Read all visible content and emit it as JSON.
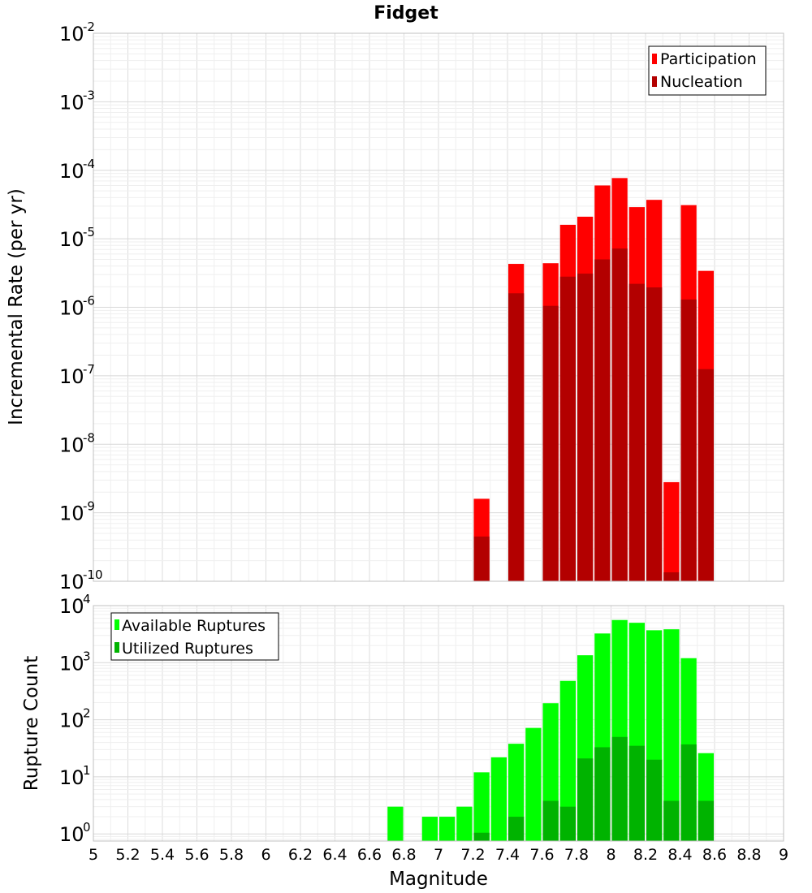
{
  "chart_data": [
    {
      "type": "bar",
      "title": "Fidget",
      "xlabel": "",
      "ylabel": "Incremental Rate (per yr)",
      "y_scale": "log",
      "ylim": [
        1e-10,
        0.01
      ],
      "xlim": [
        5,
        9
      ],
      "y_ticks": [
        {
          "base": "10",
          "exp": "-2"
        },
        {
          "base": "10",
          "exp": "-3"
        },
        {
          "base": "10",
          "exp": "-4"
        },
        {
          "base": "10",
          "exp": "-5"
        },
        {
          "base": "10",
          "exp": "-6"
        },
        {
          "base": "10",
          "exp": "-7"
        },
        {
          "base": "10",
          "exp": "-8"
        },
        {
          "base": "10",
          "exp": "-9"
        },
        {
          "base": "10",
          "exp": "-10"
        }
      ],
      "legend_position": "top-right",
      "x": [
        7.25,
        7.45,
        7.65,
        7.75,
        7.85,
        7.95,
        8.05,
        8.15,
        8.25,
        8.35,
        8.45,
        8.55
      ],
      "series": [
        {
          "name": "Participation",
          "color": "#ff0000",
          "values": [
            1.6e-09,
            4.3e-06,
            4.4e-06,
            1.6e-05,
            2.1e-05,
            6e-05,
            7.7e-05,
            2.9e-05,
            3.7e-05,
            2.8e-09,
            3.1e-05,
            3.4e-06
          ]
        },
        {
          "name": "Nucleation",
          "color": "#b30000",
          "values": [
            4.5e-10,
            1.6e-06,
            1.05e-06,
            2.8e-06,
            3.1e-06,
            5e-06,
            7.2e-06,
            2.2e-06,
            1.95e-06,
            1.35e-10,
            1.3e-06,
            1.25e-07
          ]
        }
      ]
    },
    {
      "type": "bar",
      "title": "",
      "xlabel": "Magnitude",
      "ylabel": "Rupture Count",
      "y_scale": "log",
      "ylim": [
        0.75,
        10000
      ],
      "xlim": [
        5,
        9
      ],
      "x_ticks": [
        "5",
        "5.2",
        "5.4",
        "5.6",
        "5.8",
        "6",
        "6.2",
        "6.4",
        "6.6",
        "6.8",
        "7",
        "7.2",
        "7.4",
        "7.6",
        "7.8",
        "8",
        "8.2",
        "8.4",
        "8.6",
        "8.8",
        "9"
      ],
      "y_ticks": [
        {
          "base": "10",
          "exp": "4"
        },
        {
          "base": "10",
          "exp": "3"
        },
        {
          "base": "10",
          "exp": "2"
        },
        {
          "base": "10",
          "exp": "1"
        },
        {
          "base": "10",
          "exp": "0"
        }
      ],
      "legend_position": "top-left",
      "x": [
        6.75,
        6.95,
        7.05,
        7.15,
        7.25,
        7.35,
        7.45,
        7.55,
        7.65,
        7.75,
        7.85,
        7.95,
        8.05,
        8.15,
        8.25,
        8.35,
        8.45,
        8.55
      ],
      "series": [
        {
          "name": "Available Ruptures",
          "color": "#00ff00",
          "values": [
            3,
            2,
            2,
            3,
            12,
            22,
            38,
            72,
            195,
            480,
            1350,
            3250,
            5600,
            5000,
            3700,
            3850,
            1200,
            26
          ]
        },
        {
          "name": "Utilized Ruptures",
          "color": "#00b300",
          "values": [
            0,
            0,
            0,
            0,
            1.05,
            0,
            2,
            0,
            3.8,
            3,
            21,
            33,
            50,
            35,
            20,
            3.8,
            37,
            3.8
          ]
        }
      ]
    }
  ]
}
